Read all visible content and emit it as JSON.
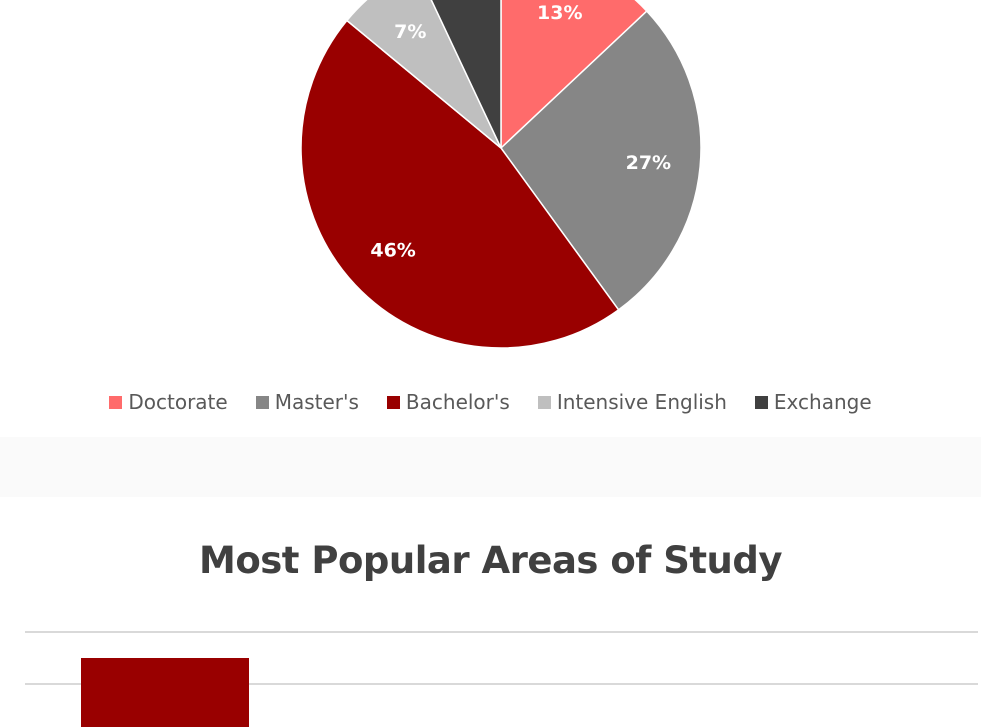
{
  "chart_data": [
    {
      "type": "pie",
      "title": "",
      "labels": [
        "Doctorate",
        "Master's",
        "Bachelor's",
        "Intensive English",
        "Exchange"
      ],
      "values": [
        13,
        27,
        46,
        7,
        7
      ],
      "value_labels": [
        "13%",
        "27%",
        "46%",
        "7%",
        ""
      ],
      "colors": [
        "#ff6b6b",
        "#868686",
        "#990000",
        "#bfbfbf",
        "#404040"
      ],
      "legend_position": "bottom"
    },
    {
      "type": "bar",
      "title": "Most Popular Areas of Study",
      "categories": [
        ""
      ],
      "values": [
        null
      ],
      "colors": [
        "#990000"
      ],
      "grid": true
    }
  ]
}
